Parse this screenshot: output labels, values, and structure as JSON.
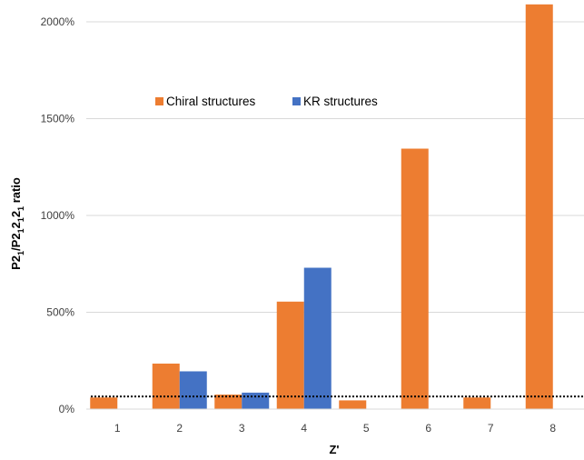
{
  "chart_data": {
    "type": "bar",
    "title": "",
    "xlabel": "Z'",
    "ylabel": "P2₁/P2₁2₁2₁ ratio",
    "ylabel_parts": {
      "a": "P2",
      "a_sub": "1",
      "b": "/P2",
      "b_sub1": "1",
      "c": "2",
      "c_sub2": "1",
      "d": "2",
      "d_sub3": "1",
      "e": " ratio"
    },
    "categories": [
      "1",
      "2",
      "3",
      "4",
      "5",
      "6",
      "7",
      "8"
    ],
    "series": [
      {
        "name": "Chiral structures",
        "color": "#ED7D31",
        "values": [
          60,
          235,
          75,
          555,
          45,
          1345,
          60,
          2090
        ]
      },
      {
        "name": "KR structures",
        "color": "#4472C4",
        "values": [
          null,
          195,
          85,
          730,
          null,
          null,
          null,
          null
        ]
      }
    ],
    "reference_line": {
      "value": 65,
      "style": "dotted",
      "color": "#000000"
    },
    "yticks": [
      0,
      500,
      1000,
      1500,
      2000
    ],
    "ytick_labels": [
      "0%",
      "500%",
      "1000%",
      "1500%",
      "2000%"
    ],
    "ylim": [
      0,
      2100
    ],
    "grid": true,
    "legend_position": "upper-left-inside"
  }
}
